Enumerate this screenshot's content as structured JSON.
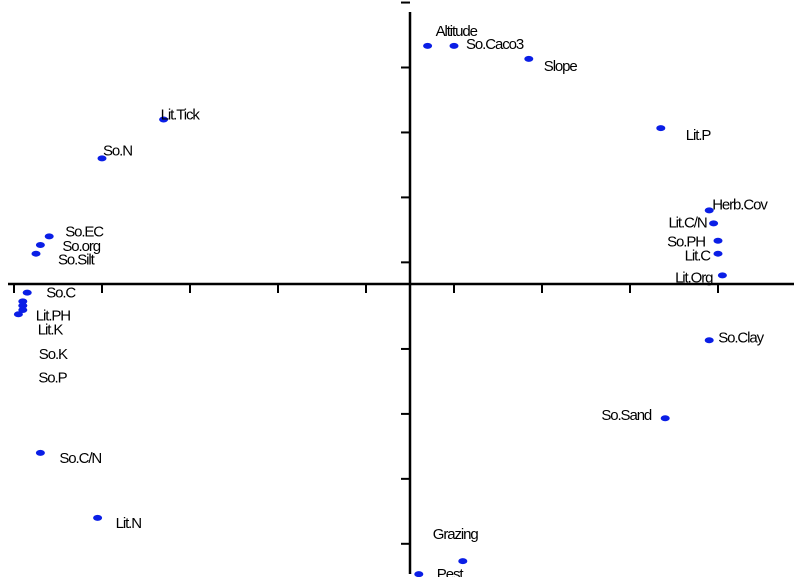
{
  "chart_data": {
    "type": "scatter",
    "title": "",
    "xlabel": "",
    "ylabel": "",
    "xlim": [
      -1.0,
      0.82
    ],
    "ylim": [
      -0.69,
      0.65
    ],
    "grid": false,
    "legend": "none",
    "x_ticks": [
      -0.9,
      -0.7,
      -0.5,
      -0.3,
      -0.1,
      0.1,
      0.3,
      0.5,
      0.7
    ],
    "y_ticks": [
      -0.6,
      -0.45,
      -0.3,
      -0.15,
      0.05,
      0.2,
      0.35,
      0.5,
      0.65
    ],
    "colors": {
      "points": "#0a1ee6",
      "axes": "#000000"
    },
    "points": [
      {
        "label": "Altitude",
        "x": 0.04,
        "y": 0.55
      },
      {
        "label": "So.Caco3",
        "x": 0.1,
        "y": 0.55
      },
      {
        "label": "Slope",
        "x": 0.27,
        "y": 0.52
      },
      {
        "label": "Lit.Tick",
        "x": -0.56,
        "y": 0.38
      },
      {
        "label": "Lit.P",
        "x": 0.57,
        "y": 0.36
      },
      {
        "label": "So.N",
        "x": -0.7,
        "y": 0.29
      },
      {
        "label": "Herb.Cov",
        "x": 0.68,
        "y": 0.17
      },
      {
        "label": "Lit.C/N",
        "x": 0.69,
        "y": 0.14
      },
      {
        "label": "So.EC",
        "x": -0.82,
        "y": 0.11
      },
      {
        "label": "So.PH",
        "x": 0.7,
        "y": 0.1
      },
      {
        "label": "So.org",
        "x": -0.84,
        "y": 0.09
      },
      {
        "label": "Lit.C",
        "x": 0.7,
        "y": 0.07
      },
      {
        "label": "So.Silt",
        "x": -0.85,
        "y": 0.07
      },
      {
        "label": "Lit.Org",
        "x": 0.71,
        "y": 0.02
      },
      {
        "label": "So.C",
        "x": -0.87,
        "y": -0.02
      },
      {
        "label": "Lit.PH",
        "x": -0.88,
        "y": -0.04
      },
      {
        "label": "Lit.K",
        "x": -0.88,
        "y": -0.05
      },
      {
        "label": "So.K",
        "x": -0.88,
        "y": -0.06
      },
      {
        "label": "So.P",
        "x": -0.89,
        "y": -0.07
      },
      {
        "label": "So.Clay",
        "x": 0.68,
        "y": -0.13
      },
      {
        "label": "So.Sand",
        "x": 0.58,
        "y": -0.31
      },
      {
        "label": "So.C/N",
        "x": -0.84,
        "y": -0.39
      },
      {
        "label": "Lit.N",
        "x": -0.71,
        "y": -0.54
      },
      {
        "label": "Grazing",
        "x": 0.12,
        "y": -0.64
      },
      {
        "label": "Pest",
        "x": 0.02,
        "y": -0.67
      }
    ]
  }
}
